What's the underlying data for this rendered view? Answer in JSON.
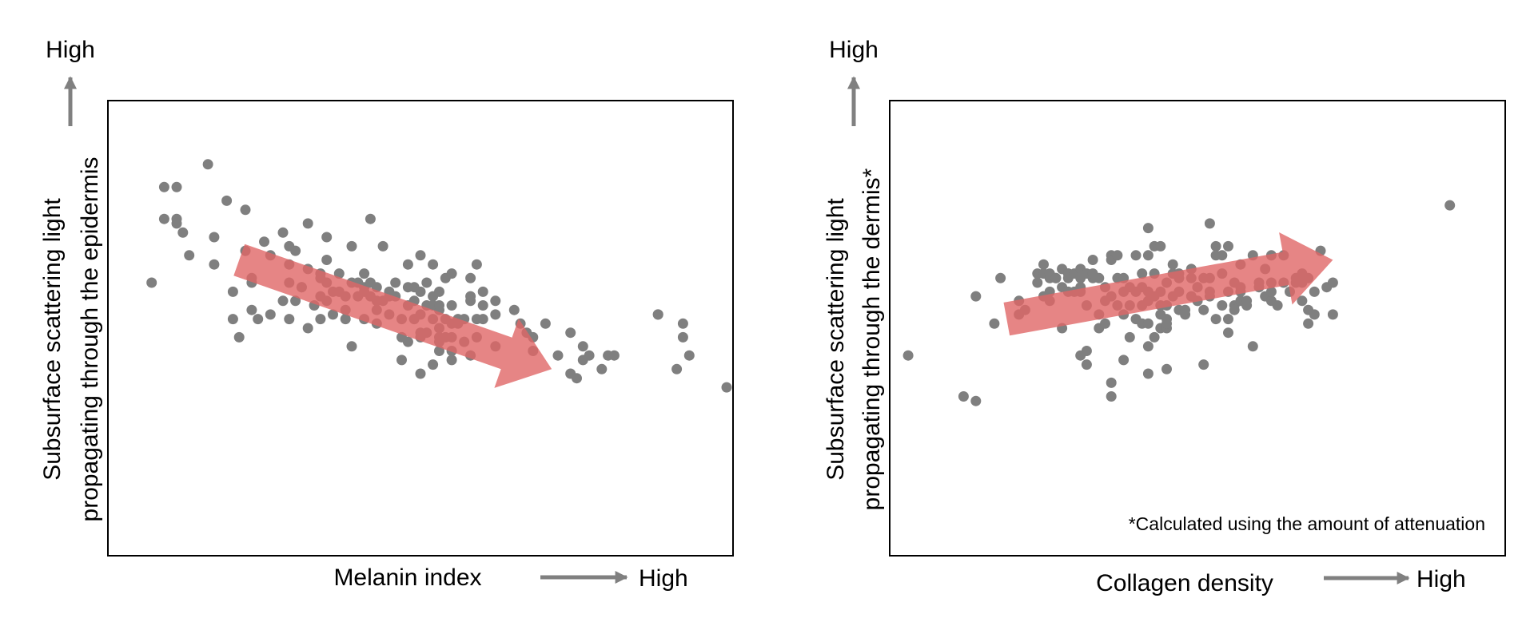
{
  "colors": {
    "point": "#7f7f7f",
    "arrow_fill": "#e06666",
    "axis_arrow": "#808080",
    "frame": "#000000"
  },
  "chart_data": [
    {
      "type": "scatter",
      "title": "",
      "xlabel": "Melanin index",
      "x_high_label": "High",
      "ylabel_line1": "Subsurface scattering light",
      "ylabel_line2": "propagating through the epidermis",
      "y_high_label": "High",
      "xlim": [
        0,
        100
      ],
      "ylim": [
        0,
        100
      ],
      "grid": false,
      "footnote": "",
      "trend_arrow": {
        "direction": "decreasing",
        "from": [
          21,
          65
        ],
        "to": [
          71,
          41
        ]
      },
      "points": [
        [
          7,
          60
        ],
        [
          9,
          74
        ],
        [
          9,
          81
        ],
        [
          11,
          81
        ],
        [
          11,
          74
        ],
        [
          11,
          73
        ],
        [
          12,
          71
        ],
        [
          13,
          66
        ],
        [
          16,
          86
        ],
        [
          17,
          70
        ],
        [
          17,
          64
        ],
        [
          19,
          78
        ],
        [
          20,
          58
        ],
        [
          20,
          52
        ],
        [
          21,
          48
        ],
        [
          22,
          76
        ],
        [
          22,
          67
        ],
        [
          23,
          60
        ],
        [
          23,
          54
        ],
        [
          23,
          61
        ],
        [
          24,
          52
        ],
        [
          25,
          69
        ],
        [
          26,
          66
        ],
        [
          26,
          53
        ],
        [
          28,
          56
        ],
        [
          28,
          71
        ],
        [
          29,
          64
        ],
        [
          29,
          60
        ],
        [
          29,
          68
        ],
        [
          29,
          52
        ],
        [
          30,
          67
        ],
        [
          30,
          56
        ],
        [
          31,
          59
        ],
        [
          31,
          59
        ],
        [
          32,
          73
        ],
        [
          32,
          63
        ],
        [
          32,
          50
        ],
        [
          33,
          55
        ],
        [
          34,
          62
        ],
        [
          34,
          61
        ],
        [
          34,
          57
        ],
        [
          34,
          52
        ],
        [
          35,
          70
        ],
        [
          35,
          65
        ],
        [
          35,
          60
        ],
        [
          35,
          56
        ],
        [
          36,
          58
        ],
        [
          36,
          53
        ],
        [
          37,
          62
        ],
        [
          37,
          58
        ],
        [
          38,
          54
        ],
        [
          38,
          52
        ],
        [
          38,
          57
        ],
        [
          39,
          68
        ],
        [
          39,
          46
        ],
        [
          39,
          60
        ],
        [
          40,
          57
        ],
        [
          40,
          60
        ],
        [
          41,
          62
        ],
        [
          41,
          59
        ],
        [
          41,
          52
        ],
        [
          41,
          58
        ],
        [
          42,
          57
        ],
        [
          42,
          60
        ],
        [
          42,
          74
        ],
        [
          43,
          54
        ],
        [
          43,
          56
        ],
        [
          43,
          59
        ],
        [
          43,
          51
        ],
        [
          44,
          68
        ],
        [
          44,
          56
        ],
        [
          45,
          57
        ],
        [
          45,
          53
        ],
        [
          45,
          58
        ],
        [
          46,
          57
        ],
        [
          46,
          60
        ],
        [
          47,
          48
        ],
        [
          47,
          43
        ],
        [
          47,
          52
        ],
        [
          48,
          47
        ],
        [
          48,
          64
        ],
        [
          48,
          55
        ],
        [
          48,
          59
        ],
        [
          49,
          59
        ],
        [
          49,
          56
        ],
        [
          49,
          52
        ],
        [
          50,
          58
        ],
        [
          50,
          48
        ],
        [
          50,
          49
        ],
        [
          50,
          53
        ],
        [
          50,
          40
        ],
        [
          50,
          66
        ],
        [
          51,
          55
        ],
        [
          51,
          49
        ],
        [
          51,
          60
        ],
        [
          52,
          57
        ],
        [
          52,
          55
        ],
        [
          52,
          64
        ],
        [
          52,
          52
        ],
        [
          52,
          42
        ],
        [
          53,
          45
        ],
        [
          53,
          50
        ],
        [
          53,
          48
        ],
        [
          53,
          58
        ],
        [
          53,
          54
        ],
        [
          53,
          55
        ],
        [
          53,
          47
        ],
        [
          54,
          52
        ],
        [
          54,
          48
        ],
        [
          54,
          61
        ],
        [
          55,
          48
        ],
        [
          55,
          55
        ],
        [
          55,
          51
        ],
        [
          55,
          43
        ],
        [
          55,
          62
        ],
        [
          55,
          45
        ],
        [
          56,
          51
        ],
        [
          56,
          52
        ],
        [
          57,
          47
        ],
        [
          57,
          52
        ],
        [
          58,
          56
        ],
        [
          58,
          44
        ],
        [
          58,
          57
        ],
        [
          58,
          61
        ],
        [
          59,
          64
        ],
        [
          59,
          48
        ],
        [
          59,
          52
        ],
        [
          60,
          55
        ],
        [
          60,
          52
        ],
        [
          60,
          58
        ],
        [
          62,
          53
        ],
        [
          62,
          46
        ],
        [
          62,
          56
        ],
        [
          65,
          54
        ],
        [
          66,
          51
        ],
        [
          67,
          49
        ],
        [
          68,
          48
        ],
        [
          68,
          45
        ],
        [
          70,
          51
        ],
        [
          72,
          44
        ],
        [
          74,
          49
        ],
        [
          74,
          40
        ],
        [
          75,
          39
        ],
        [
          76,
          43
        ],
        [
          76,
          46
        ],
        [
          77,
          44
        ],
        [
          79,
          41
        ],
        [
          80,
          44
        ],
        [
          81,
          44
        ],
        [
          88,
          53
        ],
        [
          88,
          53
        ],
        [
          92,
          48
        ],
        [
          92,
          51
        ],
        [
          93,
          44
        ],
        [
          91,
          41
        ],
        [
          101,
          37
        ]
      ]
    },
    {
      "type": "scatter",
      "title": "",
      "xlabel": "Collagen density",
      "x_high_label": "High",
      "ylabel_line1": "Subsurface scattering light",
      "ylabel_line2": "propagating through the dermis*",
      "y_high_label": "High",
      "xlim": [
        0,
        100
      ],
      "ylim": [
        0,
        100
      ],
      "grid": false,
      "footnote": "*Calculated using the amount of attenuation",
      "trend_arrow": {
        "direction": "increasing",
        "from": [
          19,
          52
        ],
        "to": [
          72,
          65
        ]
      },
      "points": [
        [
          3,
          44
        ],
        [
          12,
          35
        ],
        [
          14,
          34
        ],
        [
          14,
          57
        ],
        [
          17,
          51
        ],
        [
          18,
          61
        ],
        [
          21,
          56
        ],
        [
          21,
          53
        ],
        [
          22,
          54
        ],
        [
          24,
          60
        ],
        [
          24,
          62
        ],
        [
          25,
          57
        ],
        [
          25,
          64
        ],
        [
          25,
          62
        ],
        [
          26,
          61
        ],
        [
          26,
          62
        ],
        [
          26,
          56
        ],
        [
          26,
          58
        ],
        [
          27,
          61
        ],
        [
          27,
          61
        ],
        [
          28,
          59
        ],
        [
          28,
          50
        ],
        [
          28,
          63
        ],
        [
          29,
          61
        ],
        [
          29,
          62
        ],
        [
          29,
          62
        ],
        [
          29,
          58
        ],
        [
          30,
          58
        ],
        [
          30,
          62
        ],
        [
          31,
          58
        ],
        [
          31,
          59
        ],
        [
          31,
          61
        ],
        [
          31,
          63
        ],
        [
          31,
          44
        ],
        [
          32,
          45
        ],
        [
          32,
          42
        ],
        [
          32,
          55
        ],
        [
          32,
          62
        ],
        [
          33,
          61
        ],
        [
          33,
          65
        ],
        [
          33,
          62
        ],
        [
          34,
          61
        ],
        [
          34,
          53
        ],
        [
          34,
          50
        ],
        [
          35,
          56
        ],
        [
          35,
          51
        ],
        [
          35,
          59
        ],
        [
          36,
          66
        ],
        [
          36,
          65
        ],
        [
          36,
          38
        ],
        [
          36,
          35
        ],
        [
          36,
          57
        ],
        [
          37,
          55
        ],
        [
          37,
          61
        ],
        [
          37,
          66
        ],
        [
          38,
          53
        ],
        [
          38,
          61
        ],
        [
          38,
          58
        ],
        [
          38,
          43
        ],
        [
          39,
          48
        ],
        [
          39,
          55
        ],
        [
          39,
          59
        ],
        [
          40,
          66
        ],
        [
          40,
          52
        ],
        [
          40,
          58
        ],
        [
          41,
          55
        ],
        [
          41,
          59
        ],
        [
          41,
          62
        ],
        [
          41,
          51
        ],
        [
          42,
          72
        ],
        [
          42,
          56
        ],
        [
          42,
          58
        ],
        [
          42,
          66
        ],
        [
          42,
          51
        ],
        [
          42,
          46
        ],
        [
          42,
          40
        ],
        [
          43,
          48
        ],
        [
          43,
          57
        ],
        [
          43,
          62
        ],
        [
          43,
          68
        ],
        [
          44,
          68
        ],
        [
          44,
          58
        ],
        [
          44,
          50
        ],
        [
          44,
          55
        ],
        [
          44,
          53
        ],
        [
          45,
          55
        ],
        [
          45,
          52
        ],
        [
          45,
          50
        ],
        [
          45,
          51
        ],
        [
          45,
          41
        ],
        [
          45,
          60
        ],
        [
          46,
          57
        ],
        [
          46,
          64
        ],
        [
          46,
          62
        ],
        [
          47,
          58
        ],
        [
          47,
          61
        ],
        [
          47,
          54
        ],
        [
          47,
          62
        ],
        [
          48,
          53
        ],
        [
          48,
          54
        ],
        [
          49,
          57
        ],
        [
          49,
          63
        ],
        [
          49,
          61
        ],
        [
          50,
          56
        ],
        [
          50,
          59
        ],
        [
          50,
          56
        ],
        [
          50,
          59
        ],
        [
          51,
          61
        ],
        [
          51,
          42
        ],
        [
          51,
          54
        ],
        [
          52,
          73
        ],
        [
          52,
          61
        ],
        [
          52,
          58
        ],
        [
          52,
          57
        ],
        [
          53,
          68
        ],
        [
          53,
          52
        ],
        [
          53,
          66
        ],
        [
          54,
          55
        ],
        [
          54,
          66
        ],
        [
          54,
          62
        ],
        [
          55,
          49
        ],
        [
          55,
          58
        ],
        [
          55,
          52
        ],
        [
          55,
          68
        ],
        [
          56,
          60
        ],
        [
          56,
          55
        ],
        [
          56,
          54
        ],
        [
          57,
          64
        ],
        [
          57,
          59
        ],
        [
          57,
          56
        ],
        [
          57,
          58
        ],
        [
          58,
          55
        ],
        [
          58,
          56
        ],
        [
          59,
          46
        ],
        [
          59,
          66
        ],
        [
          60,
          60
        ],
        [
          60,
          59
        ],
        [
          61,
          63
        ],
        [
          61,
          57
        ],
        [
          62,
          56
        ],
        [
          62,
          58
        ],
        [
          62,
          60
        ],
        [
          62,
          66
        ],
        [
          63,
          55
        ],
        [
          64,
          60
        ],
        [
          64,
          66
        ],
        [
          65,
          58
        ],
        [
          66,
          61
        ],
        [
          66,
          60
        ],
        [
          67,
          56
        ],
        [
          67,
          60
        ],
        [
          67,
          62
        ],
        [
          68,
          61
        ],
        [
          68,
          54
        ],
        [
          68,
          51
        ],
        [
          69,
          58
        ],
        [
          69,
          53
        ],
        [
          70,
          67
        ],
        [
          71,
          59
        ],
        [
          72,
          60
        ],
        [
          72,
          53
        ],
        [
          91,
          77
        ]
      ]
    }
  ]
}
